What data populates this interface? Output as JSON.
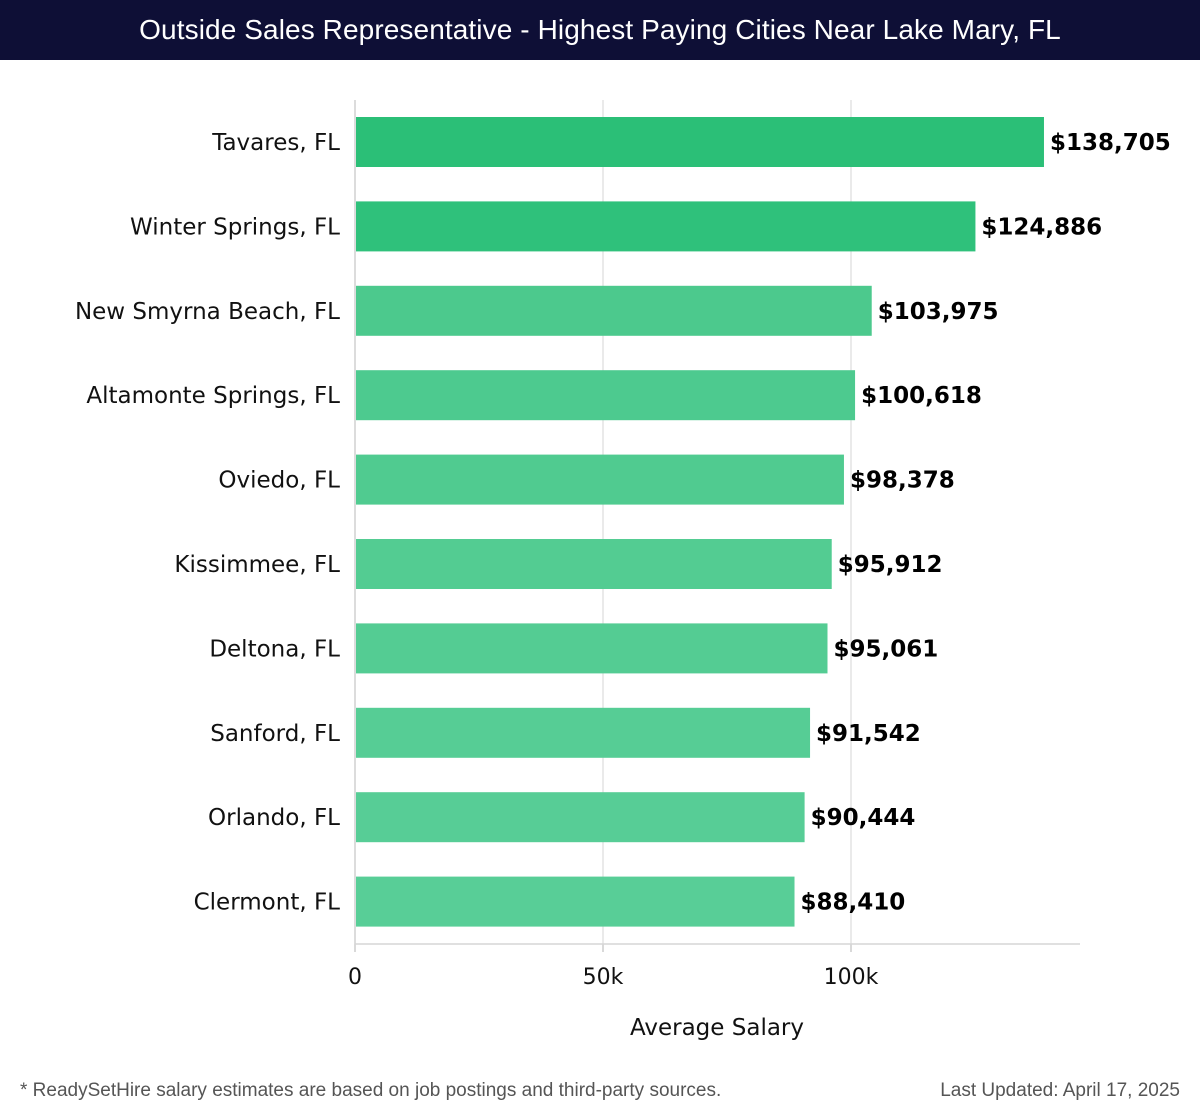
{
  "header": {
    "title": "Outside Sales Representative - Highest Paying Cities Near Lake Mary, FL"
  },
  "chart_data": {
    "type": "bar",
    "orientation": "horizontal",
    "title": "Outside Sales Representative - Highest Paying Cities Near Lake Mary, FL",
    "xlabel": "Average Salary",
    "ylabel": "",
    "xlim": [
      0,
      146000
    ],
    "x_ticks": [
      0,
      50000,
      100000
    ],
    "x_tick_labels": [
      "0",
      "50k",
      "100k"
    ],
    "grid": true,
    "categories": [
      "Tavares, FL",
      "Winter Springs, FL",
      "New Smyrna Beach, FL",
      "Altamonte Springs, FL",
      "Oviedo, FL",
      "Kissimmee, FL",
      "Deltona, FL",
      "Sanford, FL",
      "Orlando, FL",
      "Clermont, FL"
    ],
    "values": [
      138705,
      124886,
      103975,
      100618,
      98378,
      95912,
      95061,
      91542,
      90444,
      88410
    ],
    "value_labels": [
      "$138,705",
      "$124,886",
      "$103,975",
      "$100,618",
      "$98,378",
      "$95,912",
      "$95,061",
      "$91,542",
      "$90,444",
      "$88,410"
    ],
    "bar_colors": [
      "#2bbf77",
      "#2fc17b",
      "#4cc98d",
      "#4dca8f",
      "#50cb90",
      "#53cc92",
      "#54cc93",
      "#56cd95",
      "#57cd96",
      "#58ce97"
    ]
  },
  "footer": {
    "note": "* ReadySetHire salary estimates are based on job postings and third-party sources.",
    "updated": "Last Updated: April 17, 2025"
  }
}
